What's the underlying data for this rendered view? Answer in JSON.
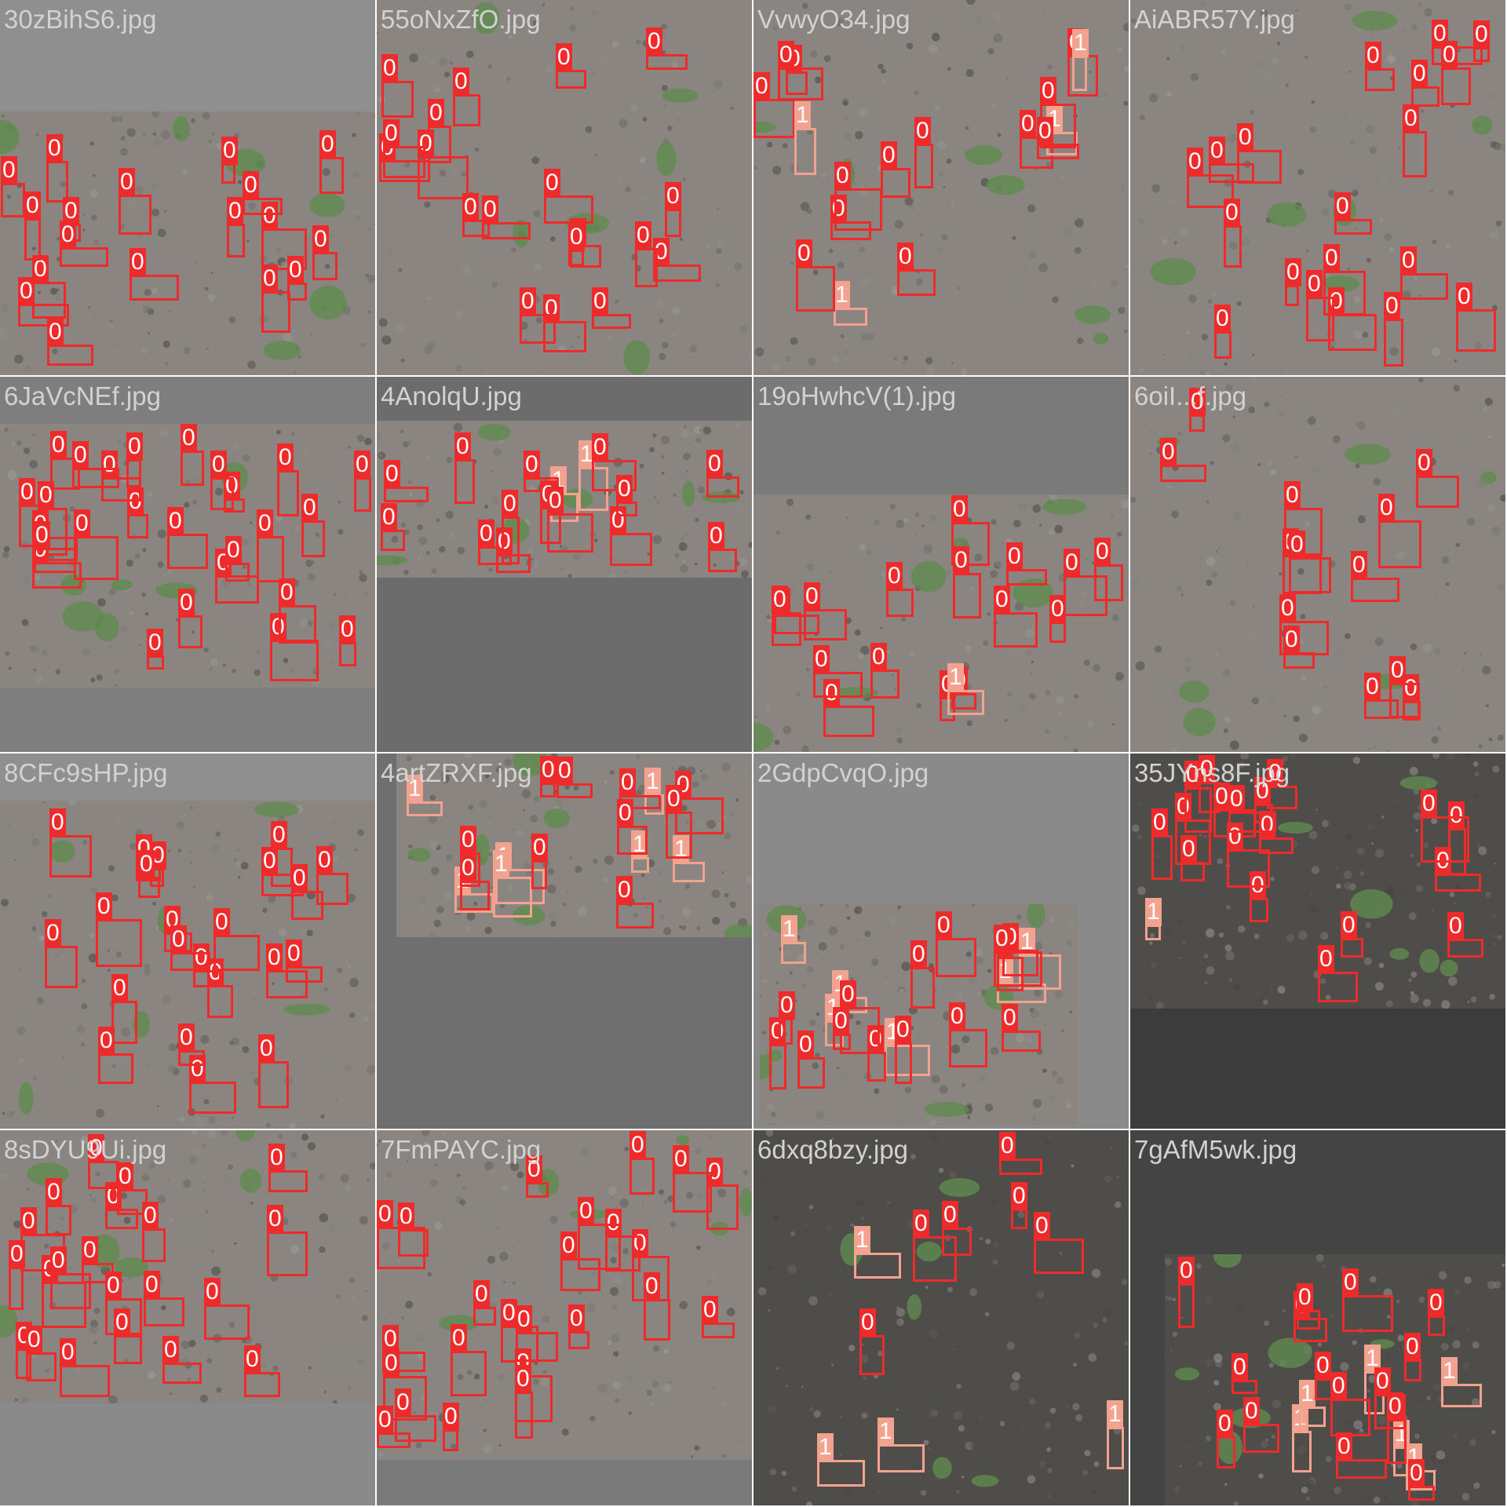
{
  "grid": {
    "rows": 4,
    "cols": 4,
    "colors": {
      "class_0": "#ee2a2a",
      "class_1": "#f3a290",
      "label_text": "#ffffff",
      "filename_text": "#d2d2d2",
      "padding_gray": "#727272",
      "soil_light": "#8a8580",
      "soil_dark": "#4f4d4a",
      "plant_green": "#5f8a4e"
    }
  },
  "tiles": [
    {
      "filename": "30zBihS6.jpg",
      "detections": [
        {
          "c": "0"
        },
        {
          "c": "0"
        },
        {
          "c": "0"
        },
        {
          "c": "0"
        },
        {
          "c": "0"
        },
        {
          "c": "0"
        },
        {
          "c": "0"
        },
        {
          "c": "0"
        },
        {
          "c": "0"
        },
        {
          "c": "0"
        },
        {
          "c": "0"
        },
        {
          "c": "0"
        },
        {
          "c": "0"
        },
        {
          "c": "0"
        },
        {
          "c": "0"
        },
        {
          "c": "0"
        },
        {
          "c": "0"
        },
        {
          "c": "0"
        }
      ]
    },
    {
      "filename": "55oNxZfO.jpg",
      "detections": [
        {
          "c": "0"
        },
        {
          "c": "0"
        },
        {
          "c": "0"
        },
        {
          "c": "0"
        },
        {
          "c": "0"
        },
        {
          "c": "0"
        },
        {
          "c": "0"
        },
        {
          "c": "0"
        },
        {
          "c": "0"
        },
        {
          "c": "0"
        },
        {
          "c": "0"
        },
        {
          "c": "0"
        },
        {
          "c": "0"
        },
        {
          "c": "0"
        },
        {
          "c": "0"
        },
        {
          "c": "0"
        },
        {
          "c": "0"
        },
        {
          "c": "0"
        },
        {
          "c": "0"
        }
      ]
    },
    {
      "filename": "VvwyO34.jpg",
      "detections": [
        {
          "c": "1"
        },
        {
          "c": "0"
        },
        {
          "c": "0"
        },
        {
          "c": "0"
        },
        {
          "c": "0"
        },
        {
          "c": "0"
        },
        {
          "c": "1"
        },
        {
          "c": "0"
        },
        {
          "c": "0"
        },
        {
          "c": "1"
        },
        {
          "c": "0"
        },
        {
          "c": "0"
        },
        {
          "c": "1"
        },
        {
          "c": "0"
        },
        {
          "c": "0"
        },
        {
          "c": "0"
        },
        {
          "c": "0"
        }
      ]
    },
    {
      "filename": "AiABR57Y.jpg",
      "detections": [
        {
          "c": "0"
        },
        {
          "c": "0"
        },
        {
          "c": "0"
        },
        {
          "c": "0"
        },
        {
          "c": "0"
        },
        {
          "c": "0"
        },
        {
          "c": "0"
        },
        {
          "c": "0"
        },
        {
          "c": "0"
        },
        {
          "c": "0"
        },
        {
          "c": "0"
        },
        {
          "c": "0"
        },
        {
          "c": "0"
        },
        {
          "c": "0"
        },
        {
          "c": "0"
        },
        {
          "c": "0"
        },
        {
          "c": "0"
        },
        {
          "c": "0"
        },
        {
          "c": "0"
        }
      ]
    },
    {
      "filename": "6JaVcNEf.jpg",
      "detections": [
        {
          "c": "0"
        },
        {
          "c": "0"
        },
        {
          "c": "0"
        },
        {
          "c": "0"
        },
        {
          "c": "0"
        },
        {
          "c": "0"
        },
        {
          "c": "0"
        },
        {
          "c": "0"
        },
        {
          "c": "0"
        },
        {
          "c": "0"
        },
        {
          "c": "0"
        },
        {
          "c": "0"
        },
        {
          "c": "0"
        },
        {
          "c": "0"
        },
        {
          "c": "0"
        },
        {
          "c": "0"
        },
        {
          "c": "0"
        },
        {
          "c": "0"
        },
        {
          "c": "0"
        },
        {
          "c": "0"
        },
        {
          "c": "0"
        },
        {
          "c": "0"
        },
        {
          "c": "0"
        },
        {
          "c": "0"
        },
        {
          "c": "0"
        },
        {
          "c": "0"
        }
      ]
    },
    {
      "filename": "4AnolqU.jpg",
      "detections": [
        {
          "c": "1"
        },
        {
          "c": "1"
        },
        {
          "c": "0"
        },
        {
          "c": "0"
        },
        {
          "c": "0"
        },
        {
          "c": "0"
        },
        {
          "c": "0"
        },
        {
          "c": "0"
        },
        {
          "c": "0"
        },
        {
          "c": "0"
        },
        {
          "c": "0"
        },
        {
          "c": "0"
        },
        {
          "c": "0"
        },
        {
          "c": "0"
        },
        {
          "c": "0"
        },
        {
          "c": "0"
        }
      ]
    },
    {
      "filename": "19oHwhcV(1).jpg",
      "detections": [
        {
          "c": "0"
        },
        {
          "c": "0"
        },
        {
          "c": "0"
        },
        {
          "c": "0"
        },
        {
          "c": "0"
        },
        {
          "c": "0"
        },
        {
          "c": "0"
        },
        {
          "c": "0"
        },
        {
          "c": "1"
        },
        {
          "c": "0"
        },
        {
          "c": "0"
        },
        {
          "c": "0"
        },
        {
          "c": "0"
        },
        {
          "c": "0"
        },
        {
          "c": "0"
        },
        {
          "c": "0"
        },
        {
          "c": "0"
        }
      ]
    },
    {
      "filename": "6oiI...f.jpg",
      "detections": [
        {
          "c": "0"
        },
        {
          "c": "0"
        },
        {
          "c": "0"
        },
        {
          "c": "0"
        },
        {
          "c": "0"
        },
        {
          "c": "0"
        },
        {
          "c": "0"
        },
        {
          "c": "0"
        },
        {
          "c": "0"
        },
        {
          "c": "0"
        },
        {
          "c": "0"
        },
        {
          "c": "0"
        },
        {
          "c": "0"
        }
      ]
    },
    {
      "filename": "8CFc9sHP.jpg",
      "detections": [
        {
          "c": "0"
        },
        {
          "c": "0"
        },
        {
          "c": "0"
        },
        {
          "c": "0"
        },
        {
          "c": "0"
        },
        {
          "c": "0"
        },
        {
          "c": "0"
        },
        {
          "c": "0"
        },
        {
          "c": "0"
        },
        {
          "c": "0"
        },
        {
          "c": "0"
        },
        {
          "c": "0"
        },
        {
          "c": "0"
        },
        {
          "c": "0"
        },
        {
          "c": "0"
        },
        {
          "c": "0"
        },
        {
          "c": "0"
        },
        {
          "c": "0"
        },
        {
          "c": "0"
        },
        {
          "c": "0"
        },
        {
          "c": "0"
        },
        {
          "c": "0"
        }
      ]
    },
    {
      "filename": "4artZRXF.jpg",
      "detections": [
        {
          "c": "1"
        },
        {
          "c": "1"
        },
        {
          "c": "1"
        },
        {
          "c": "1"
        },
        {
          "c": "1"
        },
        {
          "c": "1"
        },
        {
          "c": "1"
        },
        {
          "c": "0"
        },
        {
          "c": "0"
        },
        {
          "c": "0"
        },
        {
          "c": "0"
        },
        {
          "c": "0"
        },
        {
          "c": "0"
        },
        {
          "c": "0"
        },
        {
          "c": "0"
        },
        {
          "c": "0"
        },
        {
          "c": "0"
        }
      ]
    },
    {
      "filename": "2GdpCvqO.jpg",
      "detections": [
        {
          "c": "1"
        },
        {
          "c": "1"
        },
        {
          "c": "1"
        },
        {
          "c": "1"
        },
        {
          "c": "1"
        },
        {
          "c": "1"
        },
        {
          "c": "0"
        },
        {
          "c": "0"
        },
        {
          "c": "0"
        },
        {
          "c": "0"
        },
        {
          "c": "0"
        },
        {
          "c": "0"
        },
        {
          "c": "0"
        },
        {
          "c": "0"
        },
        {
          "c": "0"
        },
        {
          "c": "0"
        },
        {
          "c": "0"
        },
        {
          "c": "0"
        },
        {
          "c": "0"
        },
        {
          "c": "0"
        }
      ]
    },
    {
      "filename": "35JYns8F.jpg",
      "detections": [
        {
          "c": "1"
        },
        {
          "c": "0"
        },
        {
          "c": "0"
        },
        {
          "c": "0"
        },
        {
          "c": "0"
        },
        {
          "c": "0"
        },
        {
          "c": "0"
        },
        {
          "c": "0"
        },
        {
          "c": "0"
        },
        {
          "c": "0"
        },
        {
          "c": "0"
        },
        {
          "c": "0"
        },
        {
          "c": "0"
        },
        {
          "c": "0"
        },
        {
          "c": "0"
        },
        {
          "c": "0"
        },
        {
          "c": "0"
        },
        {
          "c": "0"
        },
        {
          "c": "0"
        }
      ]
    },
    {
      "filename": "8sDYU9Ui.jpg",
      "detections": [
        {
          "c": "0"
        },
        {
          "c": "0"
        },
        {
          "c": "0"
        },
        {
          "c": "0"
        },
        {
          "c": "0"
        },
        {
          "c": "0"
        },
        {
          "c": "0"
        },
        {
          "c": "0"
        },
        {
          "c": "0"
        },
        {
          "c": "0"
        },
        {
          "c": "0"
        },
        {
          "c": "0"
        },
        {
          "c": "0"
        },
        {
          "c": "0"
        },
        {
          "c": "0"
        },
        {
          "c": "0"
        },
        {
          "c": "0"
        },
        {
          "c": "0"
        },
        {
          "c": "0"
        },
        {
          "c": "0"
        },
        {
          "c": "0"
        }
      ]
    },
    {
      "filename": "7FmPAYC.jpg",
      "detections": [
        {
          "c": "0"
        },
        {
          "c": "0"
        },
        {
          "c": "0"
        },
        {
          "c": "0"
        },
        {
          "c": "0"
        },
        {
          "c": "0"
        },
        {
          "c": "0"
        },
        {
          "c": "0"
        },
        {
          "c": "0"
        },
        {
          "c": "0"
        },
        {
          "c": "0"
        },
        {
          "c": "0"
        },
        {
          "c": "0"
        },
        {
          "c": "0"
        },
        {
          "c": "0"
        },
        {
          "c": "0"
        },
        {
          "c": "0"
        },
        {
          "c": "0"
        },
        {
          "c": "0"
        },
        {
          "c": "0"
        },
        {
          "c": "0"
        },
        {
          "c": "0"
        },
        {
          "c": "0"
        },
        {
          "c": "0"
        }
      ]
    },
    {
      "filename": "6dxq8bzy.jpg",
      "detections": [
        {
          "c": "1"
        },
        {
          "c": "1"
        },
        {
          "c": "1"
        },
        {
          "c": "1"
        },
        {
          "c": "0"
        },
        {
          "c": "0"
        },
        {
          "c": "0"
        },
        {
          "c": "0"
        },
        {
          "c": "0"
        },
        {
          "c": "0"
        }
      ]
    },
    {
      "filename": "7gAfM5wk.jpg",
      "detections": [
        {
          "c": "1"
        },
        {
          "c": "1"
        },
        {
          "c": "1"
        },
        {
          "c": "1"
        },
        {
          "c": "1"
        },
        {
          "c": "1"
        },
        {
          "c": "0"
        },
        {
          "c": "0"
        },
        {
          "c": "0"
        },
        {
          "c": "0"
        },
        {
          "c": "0"
        },
        {
          "c": "0"
        },
        {
          "c": "0"
        },
        {
          "c": "0"
        },
        {
          "c": "0"
        },
        {
          "c": "0"
        },
        {
          "c": "0"
        },
        {
          "c": "0"
        },
        {
          "c": "0"
        },
        {
          "c": "0"
        },
        {
          "c": "0"
        }
      ]
    }
  ]
}
